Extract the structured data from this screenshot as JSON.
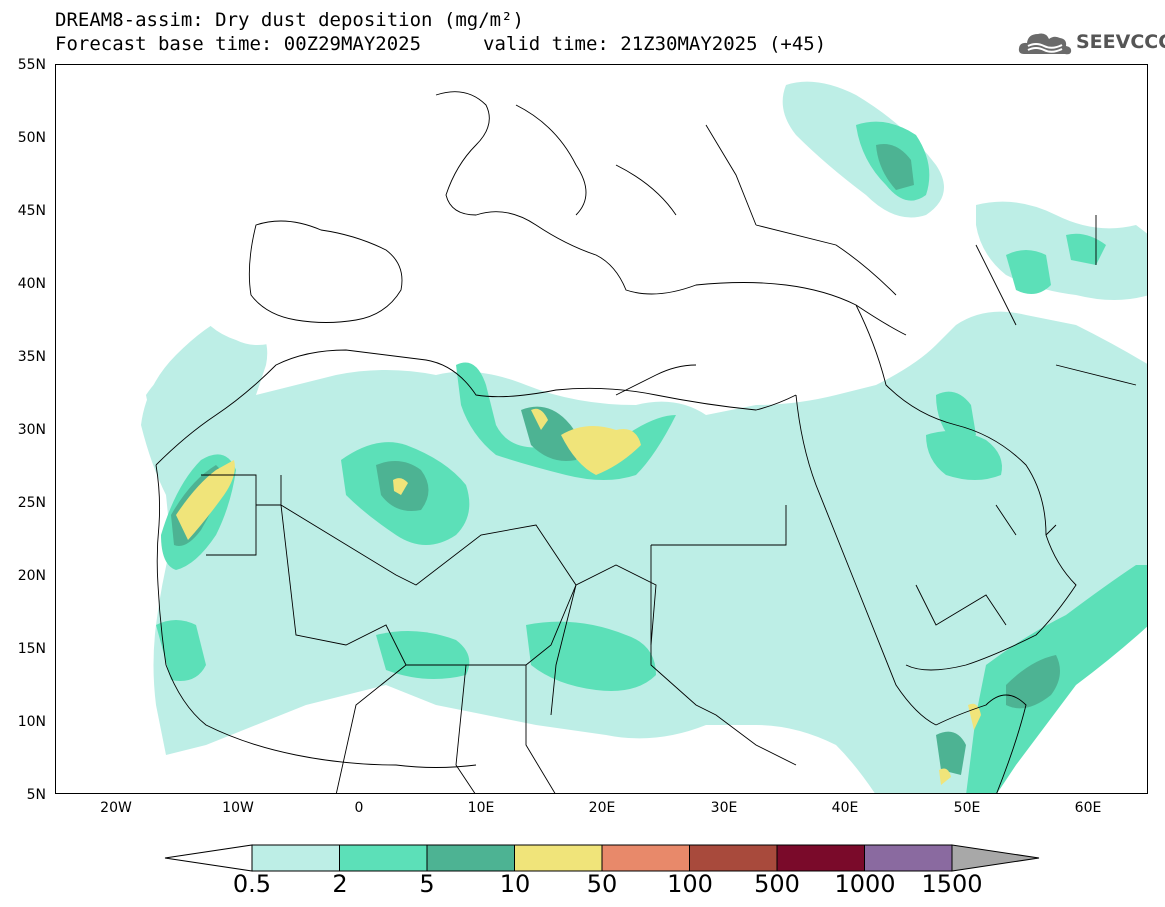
{
  "header": {
    "title": "DREAM8-assim: Dry dust deposition (mg/m²)",
    "base_time": "Forecast base time: 00Z29MAY2025",
    "valid_time": "valid time: 21Z30MAY2025 (+45)"
  },
  "logo": {
    "text": "SEEVCCC",
    "icon": "cloud-logo-icon"
  },
  "map": {
    "lat_labels": [
      "55N",
      "50N",
      "45N",
      "40N",
      "35N",
      "30N",
      "25N",
      "20N",
      "15N",
      "10N",
      "5N"
    ],
    "lon_labels": [
      "20W",
      "10W",
      "0",
      "10E",
      "20E",
      "30E",
      "40E",
      "50E",
      "60E"
    ],
    "fill_colors": [
      "#bdeee6",
      "#5ce0b8",
      "#4db393",
      "#f0e47a"
    ]
  },
  "colorbar": {
    "labels": [
      "0.5",
      "2",
      "5",
      "10",
      "50",
      "100",
      "500",
      "1000",
      "1500"
    ],
    "colors": [
      "#bdeee6",
      "#5ce0b8",
      "#4db393",
      "#f0e47a",
      "#e8896a",
      "#a84a3c",
      "#7a0a2a",
      "#8a6aa0",
      "#a8a8a8"
    ],
    "under_color": "#ffffff",
    "over_color": "#a8a8a8"
  }
}
